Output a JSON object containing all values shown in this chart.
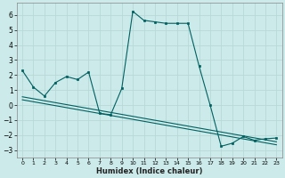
{
  "xlabel": "Humidex (Indice chaleur)",
  "bg_color": "#cceaea",
  "grid_color": "#b8d8d8",
  "line_color": "#006060",
  "xlim": [
    -0.5,
    23.5
  ],
  "ylim": [
    -3.5,
    6.8
  ],
  "xticks": [
    0,
    1,
    2,
    3,
    4,
    5,
    6,
    7,
    8,
    9,
    10,
    11,
    12,
    13,
    14,
    15,
    16,
    17,
    18,
    19,
    20,
    21,
    22,
    23
  ],
  "yticks": [
    -3,
    -2,
    -1,
    0,
    1,
    2,
    3,
    4,
    5,
    6
  ],
  "series1_x": [
    0,
    1,
    2,
    3,
    4,
    5,
    6,
    7,
    8,
    9,
    10,
    11,
    12,
    13,
    14,
    15,
    16,
    17,
    18,
    19,
    20,
    21,
    22,
    23
  ],
  "series1_y": [
    2.3,
    1.2,
    0.6,
    1.5,
    1.9,
    1.7,
    2.2,
    -0.55,
    -0.65,
    1.1,
    6.25,
    5.65,
    5.55,
    5.45,
    5.45,
    5.45,
    2.6,
    0.0,
    -2.75,
    -2.55,
    -2.1,
    -2.35,
    -2.25,
    -2.2
  ],
  "series2_x": [
    0,
    23
  ],
  "series2_y": [
    0.55,
    -2.45
  ],
  "series3_x": [
    0,
    23
  ],
  "series3_y": [
    0.35,
    -2.65
  ],
  "marker_x": [
    0,
    1,
    2,
    3,
    4,
    5,
    6,
    7,
    8,
    9,
    10,
    11,
    12,
    13,
    14,
    15,
    16,
    17,
    18,
    19,
    20,
    21,
    22,
    23
  ],
  "marker_y": [
    2.3,
    1.2,
    0.6,
    1.5,
    1.9,
    1.7,
    2.2,
    -0.55,
    -0.65,
    1.1,
    6.25,
    5.65,
    5.55,
    5.45,
    5.45,
    5.45,
    2.6,
    0.0,
    -2.75,
    -2.55,
    -2.1,
    -2.35,
    -2.25,
    -2.2
  ]
}
